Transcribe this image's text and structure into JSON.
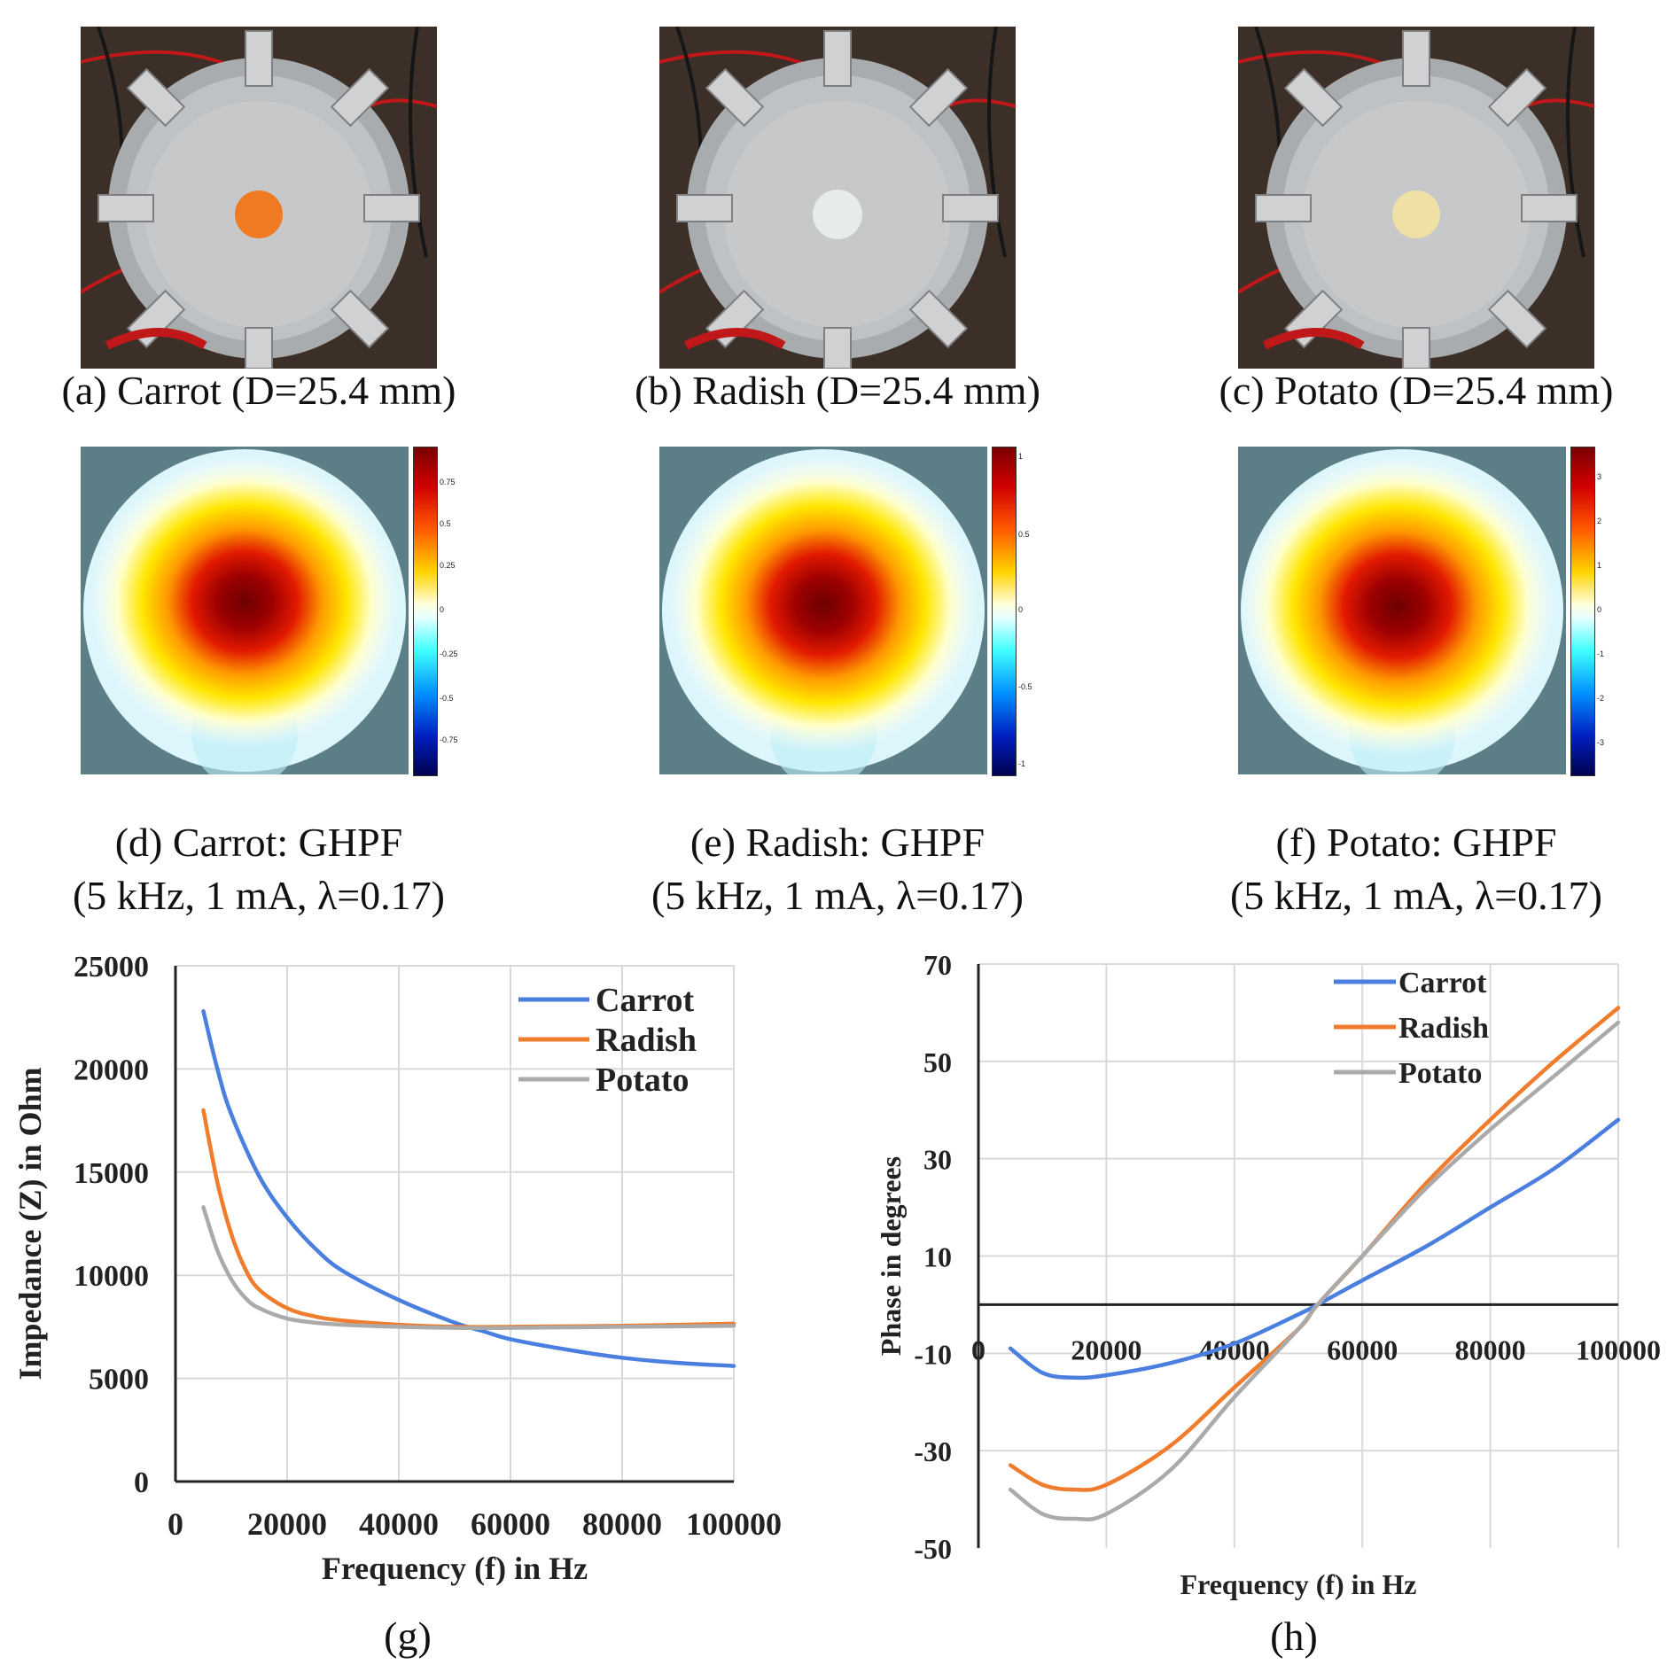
{
  "photos": [
    {
      "id": "a",
      "caption": "(a) Carrot (D=25.4 mm)",
      "sample_color": "#f07a22"
    },
    {
      "id": "b",
      "caption": "(b) Radish (D=25.4 mm)",
      "sample_color": "#e8ece8"
    },
    {
      "id": "c",
      "caption": "(c) Potato (D=25.4 mm)",
      "sample_color": "#efe1a5"
    }
  ],
  "reconstructions": [
    {
      "id": "d",
      "caption_line1": "(d) Carrot: GHPF",
      "caption_line2": "(5 kHz, 1 mA, λ=0.17)",
      "colorbar_ticks": [
        "0.75",
        "0.5",
        "0.25",
        "0",
        "-0.25",
        "-0.5",
        "-0.75"
      ]
    },
    {
      "id": "e",
      "caption_line1": "(e) Radish: GHPF",
      "caption_line2": "(5 kHz, 1 mA, λ=0.17)",
      "colorbar_ticks": [
        "1",
        "0.5",
        "0",
        "-0.5",
        "-1"
      ]
    },
    {
      "id": "f",
      "caption_line1": "(f) Potato: GHPF",
      "caption_line2": "(5 kHz, 1 mA, λ=0.17)",
      "colorbar_ticks": [
        "3",
        "2",
        "1",
        "0",
        "-1",
        "-2",
        "-3"
      ]
    }
  ],
  "colors": {
    "carrot": "#4a7fe0",
    "radish": "#f07d2e",
    "potato": "#aaaaaa",
    "grid": "#d9d9d9",
    "axis": "#222222"
  },
  "chart_data": [
    {
      "id": "g",
      "type": "line",
      "caption": "(g)",
      "xlabel": "Frequency (f) in Hz",
      "ylabel": "Impedance (Z) in Ohm",
      "xlim": [
        0,
        100000
      ],
      "ylim": [
        0,
        25000
      ],
      "xticks": [
        0,
        20000,
        40000,
        60000,
        80000,
        100000
      ],
      "yticks": [
        0,
        5000,
        10000,
        15000,
        20000,
        25000
      ],
      "legend": "top-right",
      "series": [
        {
          "name": "Carrot",
          "color_key": "carrot",
          "x": [
            5000,
            7500,
            10000,
            15000,
            20000,
            25000,
            30000,
            40000,
            50000,
            55000,
            60000,
            70000,
            80000,
            90000,
            100000
          ],
          "y": [
            22800,
            20000,
            17800,
            14800,
            12800,
            11300,
            10200,
            8800,
            7700,
            7300,
            6900,
            6400,
            6000,
            5750,
            5600
          ]
        },
        {
          "name": "Radish",
          "color_key": "radish",
          "x": [
            5000,
            7500,
            10000,
            12500,
            15000,
            20000,
            25000,
            30000,
            40000,
            50000,
            60000,
            80000,
            100000
          ],
          "y": [
            18000,
            14500,
            12000,
            10300,
            9300,
            8400,
            8000,
            7800,
            7600,
            7500,
            7500,
            7550,
            7650
          ]
        },
        {
          "name": "Potato",
          "color_key": "potato",
          "x": [
            5000,
            7500,
            10000,
            12500,
            15000,
            20000,
            25000,
            30000,
            40000,
            50000,
            60000,
            80000,
            100000
          ],
          "y": [
            13300,
            11200,
            9800,
            8900,
            8400,
            7900,
            7700,
            7600,
            7500,
            7450,
            7450,
            7500,
            7550
          ]
        }
      ]
    },
    {
      "id": "h",
      "type": "line",
      "caption": "(h)",
      "xlabel": "Frequency (f) in Hz",
      "ylabel": "Phase in degrees",
      "xlim": [
        0,
        100000
      ],
      "ylim": [
        -50,
        70
      ],
      "xticks": [
        0,
        20000,
        40000,
        60000,
        80000,
        100000
      ],
      "yticks": [
        70,
        50,
        30,
        10,
        -10,
        -30,
        -50
      ],
      "legend": "top-center",
      "series": [
        {
          "name": "Carrot",
          "color_key": "carrot",
          "x": [
            5000,
            10000,
            15000,
            20000,
            30000,
            40000,
            50000,
            53000,
            60000,
            70000,
            80000,
            90000,
            100000
          ],
          "y": [
            -9,
            -14,
            -15,
            -14.5,
            -12,
            -8,
            -2,
            0,
            5,
            12,
            20,
            28,
            38
          ]
        },
        {
          "name": "Radish",
          "color_key": "radish",
          "x": [
            5000,
            10000,
            15000,
            20000,
            30000,
            40000,
            50000,
            53000,
            60000,
            70000,
            80000,
            90000,
            100000
          ],
          "y": [
            -33,
            -37,
            -38,
            -37,
            -29,
            -17,
            -5,
            0,
            10,
            25,
            38,
            50,
            61
          ]
        },
        {
          "name": "Potato",
          "color_key": "potato",
          "x": [
            5000,
            10000,
            15000,
            20000,
            30000,
            40000,
            50000,
            53000,
            60000,
            70000,
            80000,
            90000,
            100000
          ],
          "y": [
            -38,
            -43,
            -44,
            -43,
            -34,
            -19,
            -5,
            0,
            10,
            24,
            36,
            47,
            58
          ]
        }
      ]
    }
  ]
}
